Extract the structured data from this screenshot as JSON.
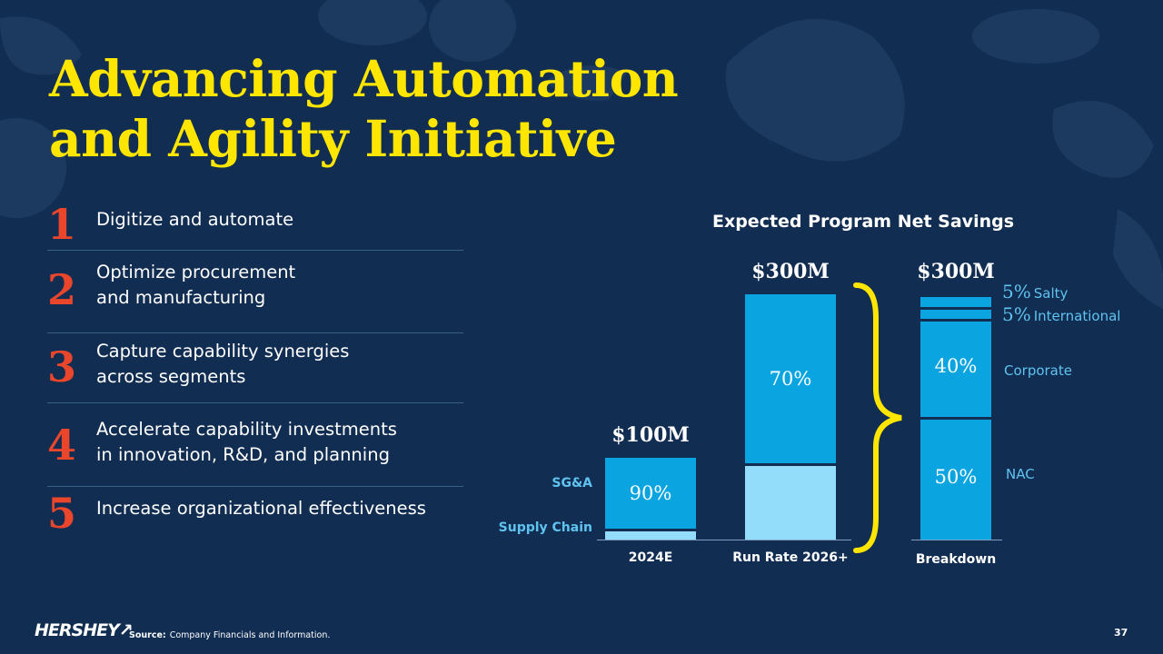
{
  "slide": {
    "title_line1": "Advancing Automation",
    "title_line2": "and Agility Initiative",
    "source_label": "Source:",
    "source_text": "Company Financials and Information.",
    "page_number": "37",
    "logo_text": "HERSHEY"
  },
  "initiatives": [
    {
      "number": "1",
      "text": "Digitize and automate"
    },
    {
      "number": "2",
      "text": "Optimize procurement\nand manufacturing"
    },
    {
      "number": "3",
      "text": "Capture capability synergies\nacross segments"
    },
    {
      "number": "4",
      "text": "Accelerate capability investments\nin innovation, R&D, and planning"
    },
    {
      "number": "5",
      "text": "Increase organizational effectiveness"
    }
  ],
  "colors": {
    "background": "#112d52",
    "title": "#ffe600",
    "numbers": "#e9462c",
    "sga": "#0aa5e1",
    "supply_chain": "#93dcfa",
    "brace": "#ffe600",
    "legend": "#5fc3f0"
  },
  "chart_data": {
    "type": "bar",
    "stacked": true,
    "title": "Expected Program Net Savings",
    "unit": "$M",
    "categories": [
      "2024E",
      "Run Rate 2026+"
    ],
    "totals": [
      100,
      300
    ],
    "total_labels": [
      "$100M",
      "$300M"
    ],
    "series": [
      {
        "name": "Supply Chain",
        "percent": [
          10,
          30
        ]
      },
      {
        "name": "SG&A",
        "percent": [
          90,
          70
        ],
        "labels": [
          "90%",
          "70%"
        ]
      }
    ],
    "breakdown": {
      "category": "Breakdown",
      "total": 300,
      "total_label": "$300M",
      "segments": [
        {
          "name": "NAC",
          "percent": 50,
          "label": "50%"
        },
        {
          "name": "Corporate",
          "percent": 40,
          "label": "40%"
        },
        {
          "name": "International",
          "percent": 5,
          "label": "5%"
        },
        {
          "name": "Salty",
          "percent": 5,
          "label": "5%"
        }
      ]
    }
  }
}
